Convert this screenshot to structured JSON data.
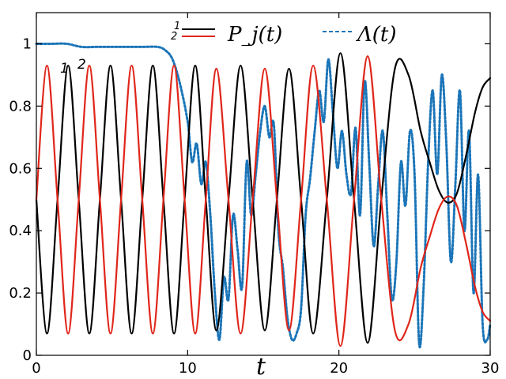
{
  "chart_data": {
    "type": "line",
    "title": "",
    "xlabel": "t",
    "ylabel": "",
    "xlim": [
      0,
      30
    ],
    "ylim": [
      0,
      1.1
    ],
    "grid": false,
    "legend_position": "top",
    "x_ticks": [
      0,
      10,
      20,
      30
    ],
    "y_ticks": [
      0,
      0.2,
      0.4,
      0.6,
      0.8,
      1
    ],
    "x_tick_labels": [
      "0",
      "10",
      "20",
      "30"
    ],
    "y_tick_labels": [
      "0",
      "0.2",
      "0.4",
      "0.6",
      "0.8",
      "1"
    ],
    "legend": {
      "p_group_label": "P_j(t)",
      "p_group_numbers": [
        "1",
        "2"
      ],
      "lambda_label": "Λ(t)"
    },
    "curve_labels": [
      "1",
      "2"
    ],
    "colors": {
      "P1": "#000000",
      "P2": "#e0261a",
      "Lambda": "#1b75b8"
    },
    "series": [
      {
        "name": "1",
        "style": "solid",
        "color": "#000000",
        "x": [
          0,
          0.7,
          1.4,
          2.1,
          2.8,
          3.5,
          4.2,
          4.9,
          5.6,
          6.3,
          7.0,
          7.7,
          8.4,
          9.1,
          9.8,
          10.5,
          11.2,
          11.9,
          12.7,
          13.5,
          14.3,
          15.1,
          15.9,
          16.7,
          17.5,
          18.3,
          19.2,
          20.1,
          21.0,
          21.9,
          22.8,
          23.7,
          24.6,
          25.4,
          26.0,
          26.6,
          27.2,
          27.8,
          28.4,
          29.0,
          29.5,
          30.0
        ],
        "y": [
          0.5,
          0.07,
          0.5,
          0.93,
          0.5,
          0.07,
          0.5,
          0.93,
          0.5,
          0.07,
          0.5,
          0.93,
          0.5,
          0.07,
          0.5,
          0.93,
          0.5,
          0.08,
          0.5,
          0.93,
          0.5,
          0.08,
          0.5,
          0.92,
          0.5,
          0.07,
          0.5,
          0.97,
          0.5,
          0.04,
          0.5,
          0.92,
          0.9,
          0.72,
          0.62,
          0.53,
          0.49,
          0.52,
          0.64,
          0.78,
          0.86,
          0.89
        ]
      },
      {
        "name": "2",
        "style": "solid",
        "color": "#e0261a",
        "x": [
          0,
          0.7,
          1.4,
          2.1,
          2.8,
          3.5,
          4.2,
          4.9,
          5.6,
          6.3,
          7.0,
          7.7,
          8.4,
          9.1,
          9.8,
          10.5,
          11.2,
          11.9,
          12.7,
          13.5,
          14.3,
          15.1,
          15.9,
          16.7,
          17.5,
          18.3,
          19.2,
          20.1,
          21.0,
          21.9,
          22.8,
          23.7,
          24.6,
          25.4,
          26.0,
          26.6,
          27.2,
          27.8,
          28.4,
          29.0,
          29.5,
          30.0
        ],
        "y": [
          0.5,
          0.93,
          0.5,
          0.07,
          0.5,
          0.93,
          0.5,
          0.07,
          0.5,
          0.93,
          0.5,
          0.07,
          0.5,
          0.93,
          0.5,
          0.07,
          0.5,
          0.92,
          0.5,
          0.07,
          0.5,
          0.92,
          0.5,
          0.08,
          0.5,
          0.93,
          0.5,
          0.03,
          0.5,
          0.96,
          0.5,
          0.08,
          0.1,
          0.28,
          0.38,
          0.47,
          0.51,
          0.48,
          0.36,
          0.22,
          0.14,
          0.11
        ]
      },
      {
        "name": "Λ(t)",
        "style": "dotted",
        "color": "#1b75b8",
        "x": [
          0,
          1,
          2,
          3,
          4,
          5,
          6,
          7,
          8,
          8.5,
          9.0,
          9.5,
          10.0,
          10.3,
          10.6,
          10.9,
          11.2,
          11.5,
          11.8,
          12.1,
          12.4,
          12.7,
          13.0,
          13.3,
          13.6,
          13.9,
          14.2,
          14.5,
          14.8,
          15.1,
          15.4,
          15.7,
          16.0,
          16.3,
          16.6,
          16.9,
          17.2,
          17.5,
          17.8,
          18.1,
          18.4,
          18.7,
          19.0,
          19.3,
          19.6,
          19.9,
          20.2,
          20.5,
          20.8,
          21.1,
          21.4,
          21.7,
          22.0,
          22.3,
          22.6,
          22.9,
          23.2,
          23.5,
          23.8,
          24.1,
          24.4,
          24.7,
          25.0,
          25.3,
          25.6,
          25.9,
          26.2,
          26.5,
          26.8,
          27.1,
          27.4,
          27.7,
          28.0,
          28.3,
          28.6,
          28.9,
          29.2,
          29.5,
          29.8,
          30.0
        ],
        "y": [
          1.0,
          1.0,
          1.0,
          0.99,
          0.99,
          0.99,
          0.99,
          0.99,
          0.99,
          0.98,
          0.95,
          0.87,
          0.75,
          0.62,
          0.68,
          0.55,
          0.62,
          0.45,
          0.2,
          0.05,
          0.25,
          0.18,
          0.45,
          0.34,
          0.22,
          0.62,
          0.45,
          0.58,
          0.72,
          0.8,
          0.7,
          0.74,
          0.4,
          0.28,
          0.12,
          0.05,
          0.07,
          0.15,
          0.45,
          0.57,
          0.72,
          0.85,
          0.75,
          0.95,
          0.78,
          0.6,
          0.72,
          0.58,
          0.52,
          0.73,
          0.45,
          0.88,
          0.62,
          0.35,
          0.55,
          0.72,
          0.45,
          0.18,
          0.3,
          0.62,
          0.48,
          0.72,
          0.58,
          0.04,
          0.22,
          0.62,
          0.85,
          0.58,
          0.9,
          0.68,
          0.3,
          0.55,
          0.85,
          0.4,
          0.72,
          0.2,
          0.58,
          0.1,
          0.05,
          0.1
        ]
      }
    ]
  }
}
